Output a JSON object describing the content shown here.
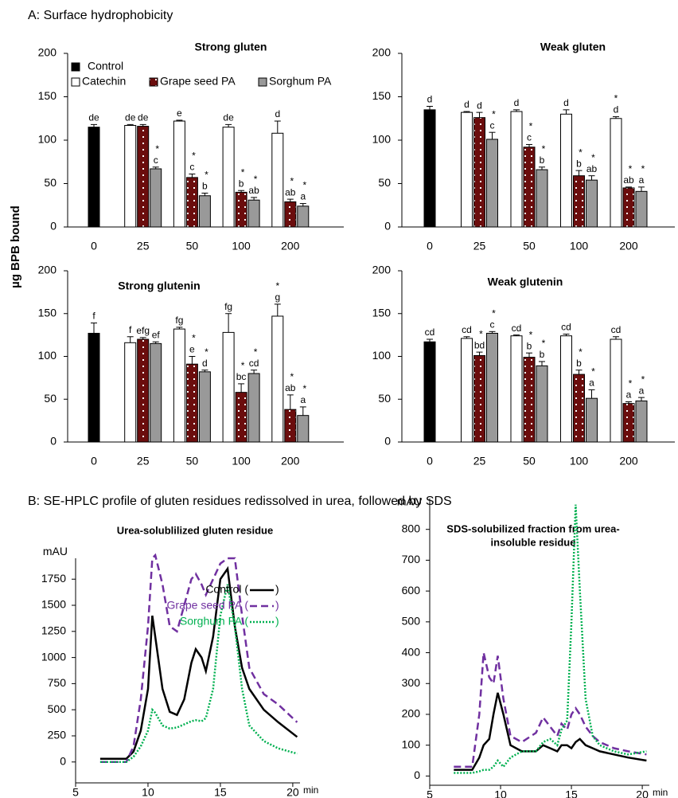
{
  "section_a_title": "A: Surface hydrophobicity",
  "shared_y_label": "µg BPB bound",
  "section_b_title": "B: SE-HPLC profile of gluten residues redissolved in urea, followed by SDS",
  "chart_data": [
    {
      "type": "bar",
      "title": "Strong gluten",
      "categories": [
        "0",
        "25",
        "50",
        "100",
        "200"
      ],
      "ylim": [
        0,
        200
      ],
      "yticks": [
        0,
        50,
        100,
        150,
        200
      ],
      "legend": "top-left",
      "series": [
        {
          "name": "Control",
          "color": "#000000",
          "values": [
            115,
            null,
            null,
            null,
            null
          ],
          "errors": [
            3,
            null,
            null,
            null,
            null
          ],
          "labels": [
            "de",
            null,
            null,
            null,
            null
          ],
          "stars": [
            null,
            null,
            null,
            null,
            null
          ]
        },
        {
          "name": "Catechin",
          "color": "#ffffff",
          "values": [
            null,
            117,
            122,
            115,
            108
          ],
          "errors": [
            null,
            1,
            1,
            3,
            14
          ],
          "labels": [
            null,
            "de",
            "e",
            "de",
            "d"
          ],
          "stars": [
            null,
            null,
            null,
            null,
            null
          ]
        },
        {
          "name": "Grape seed PA",
          "color": "#6b0d0d",
          "pattern": "dots",
          "values": [
            null,
            116,
            57,
            40,
            29
          ],
          "errors": [
            null,
            2,
            4,
            2,
            3
          ],
          "labels": [
            null,
            "de",
            "c",
            "b",
            "ab"
          ],
          "stars": [
            null,
            null,
            "*",
            "*",
            "*"
          ]
        },
        {
          "name": "Sorghum PA",
          "color": "#999999",
          "values": [
            null,
            67,
            36,
            31,
            24
          ],
          "errors": [
            null,
            2,
            3,
            3,
            3
          ],
          "labels": [
            null,
            "c",
            "b",
            "ab",
            "a"
          ],
          "stars": [
            null,
            "*",
            "*",
            "*",
            "*"
          ]
        }
      ]
    },
    {
      "type": "bar",
      "title": "Weak gluten",
      "categories": [
        "0",
        "25",
        "50",
        "100",
        "200"
      ],
      "ylim": [
        0,
        200
      ],
      "yticks": [
        0,
        50,
        100,
        150,
        200
      ],
      "series": [
        {
          "name": "Control",
          "color": "#000000",
          "values": [
            135,
            null,
            null,
            null,
            null
          ],
          "errors": [
            4,
            null,
            null,
            null,
            null
          ],
          "labels": [
            "d",
            null,
            null,
            null,
            null
          ],
          "stars": [
            null,
            null,
            null,
            null,
            null
          ]
        },
        {
          "name": "Catechin",
          "color": "#ffffff",
          "values": [
            null,
            132,
            133,
            130,
            125
          ],
          "errors": [
            null,
            1,
            2,
            5,
            2
          ],
          "labels": [
            null,
            "d",
            "d",
            "d",
            "d"
          ],
          "stars": [
            null,
            null,
            null,
            null,
            "*"
          ]
        },
        {
          "name": "Grape seed PA",
          "color": "#6b0d0d",
          "pattern": "dots",
          "values": [
            null,
            126,
            92,
            59,
            45
          ],
          "errors": [
            null,
            6,
            3,
            6,
            1
          ],
          "labels": [
            null,
            "d",
            "c",
            "b",
            "ab"
          ],
          "stars": [
            null,
            null,
            "*",
            "*",
            "*"
          ]
        },
        {
          "name": "Sorghum PA",
          "color": "#999999",
          "values": [
            null,
            101,
            66,
            54,
            41
          ],
          "errors": [
            null,
            8,
            3,
            5,
            5
          ],
          "labels": [
            null,
            "c",
            "b",
            "ab",
            "a"
          ],
          "stars": [
            null,
            "*",
            "*",
            "*",
            "*"
          ]
        }
      ]
    },
    {
      "type": "bar",
      "title": "Strong glutenin",
      "categories": [
        "0",
        "25",
        "50",
        "100",
        "200"
      ],
      "ylim": [
        0,
        200
      ],
      "yticks": [
        0,
        50,
        100,
        150,
        200
      ],
      "series": [
        {
          "name": "Control",
          "color": "#000000",
          "values": [
            127,
            null,
            null,
            null,
            null
          ],
          "errors": [
            12,
            null,
            null,
            null,
            null
          ],
          "labels": [
            "f",
            null,
            null,
            null,
            null
          ],
          "stars": [
            null,
            null,
            null,
            null,
            null
          ]
        },
        {
          "name": "Catechin",
          "color": "#ffffff",
          "values": [
            null,
            116,
            132,
            128,
            147
          ],
          "errors": [
            null,
            7,
            2,
            22,
            14
          ],
          "labels": [
            null,
            "f",
            "fg",
            "fg",
            "g"
          ],
          "stars": [
            null,
            null,
            null,
            null,
            "*"
          ]
        },
        {
          "name": "Grape seed PA",
          "color": "#6b0d0d",
          "pattern": "dots",
          "values": [
            null,
            120,
            91,
            58,
            38
          ],
          "errors": [
            null,
            2,
            9,
            10,
            17
          ],
          "labels": [
            null,
            "efg",
            "e",
            "bc",
            "ab"
          ],
          "stars": [
            null,
            null,
            "*",
            "*",
            "*"
          ]
        },
        {
          "name": "Sorghum PA",
          "color": "#999999",
          "values": [
            null,
            115,
            82,
            80,
            31
          ],
          "errors": [
            null,
            2,
            2,
            4,
            10
          ],
          "labels": [
            null,
            "ef",
            "d",
            "cd",
            "a"
          ],
          "stars": [
            null,
            null,
            "*",
            "*",
            "*"
          ]
        }
      ]
    },
    {
      "type": "bar",
      "title": "Weak glutenin",
      "categories": [
        "0",
        "25",
        "50",
        "100",
        "200"
      ],
      "ylim": [
        0,
        200
      ],
      "yticks": [
        0,
        50,
        100,
        150,
        200
      ],
      "series": [
        {
          "name": "Control",
          "color": "#000000",
          "values": [
            117,
            null,
            null,
            null,
            null
          ],
          "errors": [
            3,
            null,
            null,
            null,
            null
          ],
          "labels": [
            "cd",
            null,
            null,
            null,
            null
          ],
          "stars": [
            null,
            null,
            null,
            null,
            null
          ]
        },
        {
          "name": "Catechin",
          "color": "#ffffff",
          "values": [
            null,
            121,
            124,
            124,
            120
          ],
          "errors": [
            null,
            2,
            1,
            2,
            3
          ],
          "labels": [
            null,
            "cd",
            "cd",
            "cd",
            "cd"
          ],
          "stars": [
            null,
            null,
            null,
            null,
            null
          ]
        },
        {
          "name": "Grape seed PA",
          "color": "#6b0d0d",
          "pattern": "dots",
          "values": [
            null,
            101,
            99,
            79,
            45
          ],
          "errors": [
            null,
            4,
            5,
            5,
            2
          ],
          "labels": [
            null,
            "bd",
            "b",
            "b",
            "a"
          ],
          "stars": [
            null,
            "*",
            "*",
            "*",
            "*"
          ]
        },
        {
          "name": "Sorghum PA",
          "color": "#999999",
          "values": [
            null,
            127,
            89,
            51,
            48
          ],
          "errors": [
            null,
            2,
            5,
            10,
            4
          ],
          "labels": [
            null,
            "c",
            "b",
            "a",
            "a"
          ],
          "stars": [
            null,
            "*",
            "*",
            "*",
            "*"
          ]
        }
      ]
    },
    {
      "type": "line",
      "title": [
        "Urea-solublilized gluten residue"
      ],
      "y_label": "mAU",
      "x_label": "min",
      "legend": "top-right",
      "legend_close": ")",
      "x": [
        6.7,
        7,
        8,
        8.5,
        9,
        9.5,
        10,
        10.3,
        10.5,
        11,
        11.5,
        12,
        12.5,
        13,
        13.3,
        13.7,
        14,
        14.5,
        15,
        15.5,
        16,
        16.5,
        17,
        18,
        19,
        20.3
      ],
      "xlim": [
        5,
        20.5
      ],
      "xticks": [
        5,
        10,
        15,
        20
      ],
      "ylim": [
        -200,
        1950
      ],
      "yticks": [
        0,
        250,
        500,
        750,
        1000,
        1250,
        1500,
        1750
      ],
      "series": [
        {
          "name": "Control (",
          "color": "#000000",
          "dash": "solid",
          "values": [
            30,
            30,
            30,
            30,
            100,
            300,
            700,
            1400,
            1200,
            700,
            480,
            450,
            600,
            950,
            1080,
            1000,
            870,
            1200,
            1750,
            1850,
            1300,
            900,
            700,
            500,
            380,
            240
          ]
        },
        {
          "name": "Grape seed PA (",
          "color": "#7030a0",
          "dash": "dashed",
          "values": [
            0,
            0,
            0,
            0,
            150,
            600,
            1300,
            1950,
            1980,
            1700,
            1300,
            1250,
            1500,
            1750,
            1800,
            1700,
            1600,
            1750,
            1900,
            1950,
            1950,
            1400,
            900,
            650,
            550,
            380
          ]
        },
        {
          "name": "Sorghum PA (",
          "color": "#00b050",
          "dash": "dotted",
          "values": [
            0,
            0,
            0,
            0,
            50,
            150,
            300,
            500,
            470,
            350,
            320,
            330,
            360,
            390,
            400,
            390,
            420,
            700,
            1400,
            1700,
            1300,
            700,
            350,
            200,
            130,
            80
          ]
        }
      ]
    },
    {
      "type": "line",
      "title": [
        "SDS-solubilized fraction from urea-",
        "insoluble residue"
      ],
      "y_label": "mAU",
      "x_label": "min",
      "x": [
        6.7,
        8,
        8.5,
        8.8,
        9.2,
        9.5,
        9.8,
        10.2,
        10.7,
        11.5,
        12.5,
        13,
        13.5,
        14,
        14.3,
        14.7,
        15,
        15.3,
        15.6,
        16,
        16.5,
        17,
        18,
        19,
        20.3
      ],
      "xlim": [
        5,
        20.5
      ],
      "xticks": [
        5,
        10,
        15,
        20
      ],
      "ylim": [
        -30,
        900
      ],
      "yticks": [
        0,
        100,
        200,
        300,
        400,
        500,
        600,
        700,
        800
      ],
      "series": [
        {
          "color": "#000000",
          "dash": "solid",
          "values": [
            20,
            20,
            60,
            100,
            120,
            200,
            270,
            200,
            100,
            80,
            80,
            100,
            90,
            80,
            100,
            100,
            90,
            110,
            120,
            100,
            90,
            80,
            70,
            60,
            50
          ]
        },
        {
          "color": "#7030a0",
          "dash": "dashed",
          "values": [
            30,
            30,
            200,
            400,
            320,
            300,
            390,
            250,
            130,
            110,
            140,
            190,
            160,
            130,
            170,
            150,
            200,
            220,
            200,
            160,
            130,
            110,
            90,
            80,
            70
          ]
        },
        {
          "color": "#00b050",
          "dash": "dotted",
          "values": [
            10,
            10,
            15,
            20,
            20,
            30,
            50,
            30,
            60,
            80,
            80,
            110,
            120,
            100,
            150,
            180,
            500,
            880,
            600,
            250,
            130,
            100,
            80,
            70,
            80
          ]
        }
      ]
    }
  ]
}
